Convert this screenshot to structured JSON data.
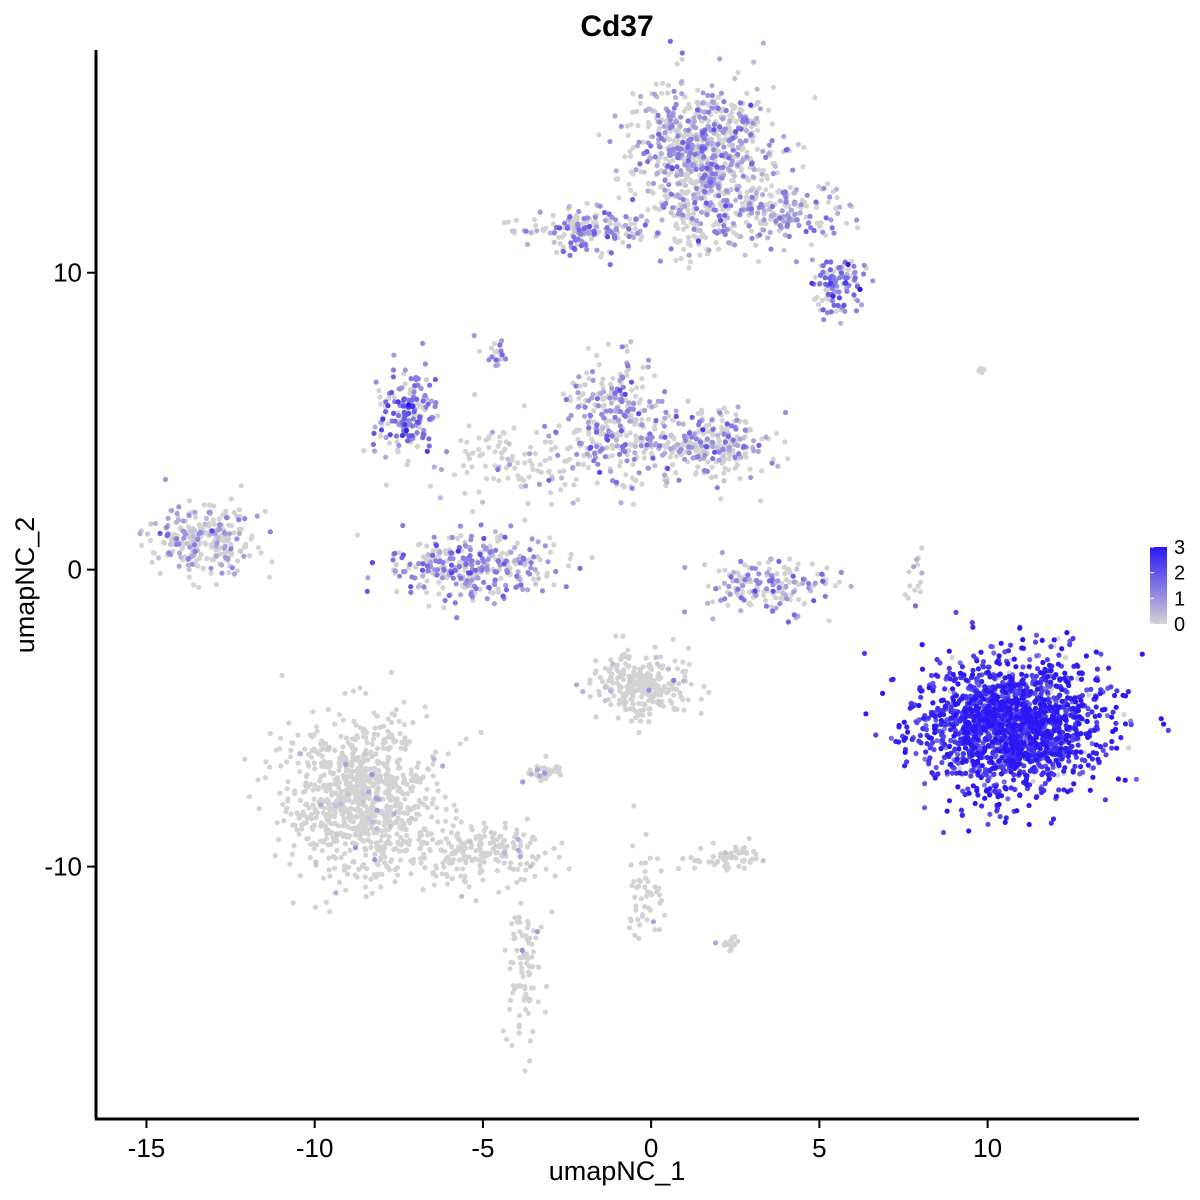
{
  "chart_data": {
    "type": "scatter",
    "title": "Cd37",
    "xlabel": "umapNC_1",
    "ylabel": "umapNC_2",
    "xlim": [
      -16.5,
      14.5
    ],
    "ylim": [
      -18.5,
      17.5
    ],
    "x_ticks": [
      -15,
      -10,
      -5,
      0,
      5,
      10
    ],
    "x_tick_labels": [
      "-15",
      "-10",
      "-5",
      "0",
      "5",
      "10"
    ],
    "y_ticks": [
      10,
      0,
      -10
    ],
    "y_tick_labels": [
      "10",
      "0",
      "-10"
    ],
    "grid": false,
    "legend": {
      "position": "right",
      "type": "colorbar",
      "labels": [
        "3",
        "2",
        "1",
        "0"
      ],
      "values": [
        3,
        2,
        1,
        0
      ],
      "low_color": "#d3d3d3",
      "high_color": "#2a17f5"
    },
    "low_color": "#d3d3d3",
    "high_color": "#2a17f5",
    "clusters": [
      {
        "name": "top-blob",
        "cx": 1.6,
        "cy": 14.3,
        "sx": 1.05,
        "sy": 1.0,
        "n": 700,
        "expr": 0.9
      },
      {
        "name": "top-stalk",
        "cx": 1.2,
        "cy": 12.2,
        "sx": 0.55,
        "sy": 0.9,
        "n": 120,
        "expr": 0.6
      },
      {
        "name": "top-left-arm",
        "cx": -1.8,
        "cy": 11.4,
        "sx": 1.0,
        "sy": 0.35,
        "n": 180,
        "expr": 1.1
      },
      {
        "name": "top-right-arm",
        "cx": 3.6,
        "cy": 12.0,
        "sx": 1.0,
        "sy": 0.55,
        "n": 230,
        "expr": 0.9
      },
      {
        "name": "top-right-lobe",
        "cx": 5.6,
        "cy": 9.6,
        "sx": 0.4,
        "sy": 0.45,
        "n": 110,
        "expr": 1.5
      },
      {
        "name": "mid-left-lobe",
        "cx": -7.2,
        "cy": 5.4,
        "sx": 0.5,
        "sy": 0.8,
        "n": 170,
        "expr": 1.4
      },
      {
        "name": "mid-center",
        "cx": -1.2,
        "cy": 5.0,
        "sx": 0.8,
        "sy": 1.1,
        "n": 300,
        "expr": 1.0
      },
      {
        "name": "mid-right",
        "cx": 1.6,
        "cy": 4.2,
        "sx": 1.0,
        "sy": 0.55,
        "n": 280,
        "expr": 0.9
      },
      {
        "name": "mid-stream",
        "cx": -4.0,
        "cy": 3.5,
        "sx": 1.4,
        "sy": 0.8,
        "n": 120,
        "expr": 0.4
      },
      {
        "name": "mid-small",
        "cx": -4.6,
        "cy": 7.3,
        "sx": 0.2,
        "sy": 0.25,
        "n": 20,
        "expr": 1.3
      },
      {
        "name": "left-cluster",
        "cx": -13.3,
        "cy": 1.0,
        "sx": 0.75,
        "sy": 0.6,
        "n": 260,
        "expr": 0.8
      },
      {
        "name": "lower-arc",
        "cx": -5.3,
        "cy": 0.1,
        "sx": 1.2,
        "sy": 0.55,
        "n": 340,
        "expr": 1.1
      },
      {
        "name": "right-arc",
        "cx": 3.5,
        "cy": -0.5,
        "sx": 0.9,
        "sy": 0.45,
        "n": 170,
        "expr": 1.0
      },
      {
        "name": "right-cluster",
        "cx": 10.7,
        "cy": -5.2,
        "sx": 1.35,
        "sy": 1.1,
        "n": 1800,
        "expr": 2.6
      },
      {
        "name": "center-lower",
        "cx": -0.3,
        "cy": -3.9,
        "sx": 0.7,
        "sy": 0.55,
        "n": 260,
        "expr": 0.15
      },
      {
        "name": "bottom-left",
        "cx": -8.6,
        "cy": -7.7,
        "sx": 1.1,
        "sy": 1.3,
        "n": 900,
        "expr": 0.05
      },
      {
        "name": "bottom-tail",
        "cx": -5.2,
        "cy": -9.6,
        "sx": 1.1,
        "sy": 0.5,
        "n": 200,
        "expr": 0.05
      },
      {
        "name": "bottom-stem",
        "cx": -3.8,
        "cy": -13.5,
        "sx": 0.3,
        "sy": 1.2,
        "n": 90,
        "expr": 0.03
      },
      {
        "name": "small-lower-1",
        "cx": -3.2,
        "cy": -6.8,
        "sx": 0.3,
        "sy": 0.15,
        "n": 40,
        "expr": 0.4
      },
      {
        "name": "small-lower-2",
        "cx": 2.2,
        "cy": -9.7,
        "sx": 0.5,
        "sy": 0.25,
        "n": 60,
        "expr": 0.05
      },
      {
        "name": "small-lower-3",
        "cx": -0.2,
        "cy": -11.0,
        "sx": 0.25,
        "sy": 0.9,
        "n": 50,
        "expr": 0.1
      },
      {
        "name": "small-lower-4",
        "cx": 2.3,
        "cy": -12.6,
        "sx": 0.2,
        "sy": 0.15,
        "n": 15,
        "expr": 0.05
      },
      {
        "name": "scatter-right",
        "cx": 7.8,
        "cy": -0.5,
        "sx": 0.15,
        "sy": 0.6,
        "n": 15,
        "expr": 0.6
      },
      {
        "name": "scatter-top-right",
        "cx": 9.7,
        "cy": 6.7,
        "sx": 0.15,
        "sy": 0.1,
        "n": 4,
        "expr": 0.3
      }
    ]
  }
}
